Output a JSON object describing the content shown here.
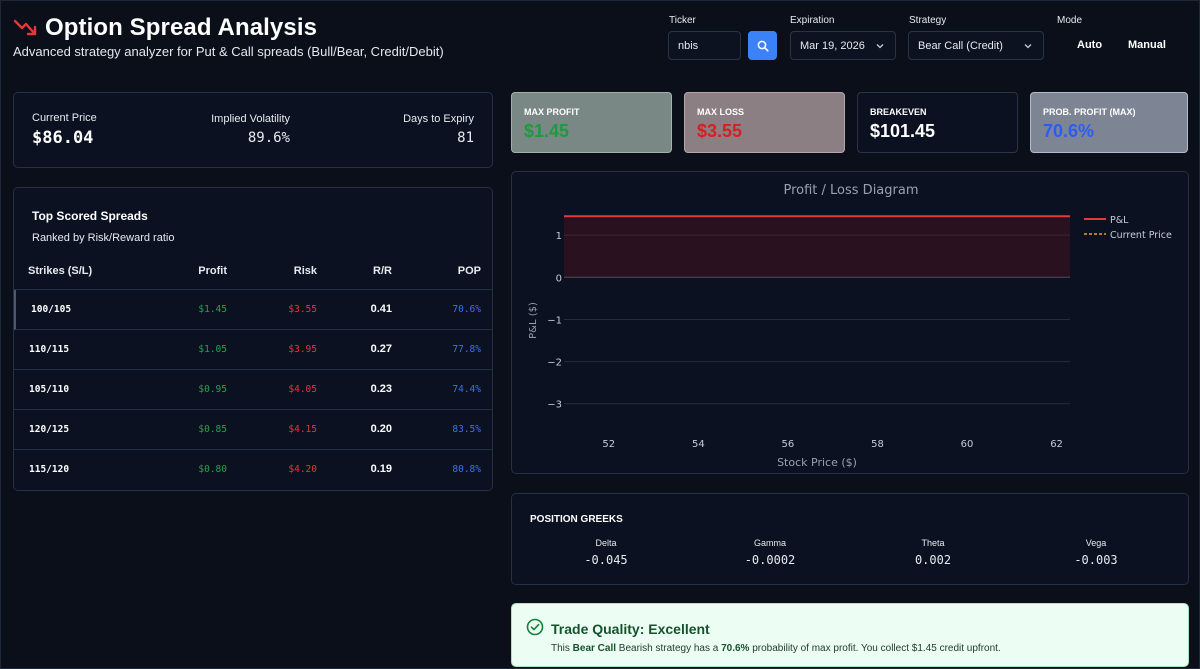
{
  "header": {
    "title": "Option Spread Analysis",
    "subtitle": "Advanced strategy analyzer for Put & Call spreads (Bull/Bear, Credit/Debit)",
    "icon": "trending-down-icon"
  },
  "controls": {
    "ticker_label": "Ticker",
    "ticker_value": "nbis",
    "expiration_label": "Expiration",
    "expiration_value": "Mar 19, 2026",
    "strategy_label": "Strategy",
    "strategy_value": "Bear Call (Credit)",
    "mode_label": "Mode",
    "mode_auto": "Auto",
    "mode_manual": "Manual"
  },
  "stats": {
    "price_label": "Current Price",
    "price_value": "$86.04",
    "iv_label": "Implied Volatility",
    "iv_value": "89.6%",
    "dte_label": "Days to Expiry",
    "dte_value": "81"
  },
  "spreads": {
    "title": "Top Scored Spreads",
    "subtitle": "Ranked by Risk/Reward ratio",
    "headers": [
      "Strikes (S/L)",
      "Profit",
      "Risk",
      "R/R",
      "POP"
    ],
    "rows": [
      {
        "strikes": "100/105",
        "profit": "$1.45",
        "risk": "$3.55",
        "rr": "0.41",
        "pop": "70.6%"
      },
      {
        "strikes": "110/115",
        "profit": "$1.05",
        "risk": "$3.95",
        "rr": "0.27",
        "pop": "77.8%"
      },
      {
        "strikes": "105/110",
        "profit": "$0.95",
        "risk": "$4.05",
        "rr": "0.23",
        "pop": "74.4%"
      },
      {
        "strikes": "120/125",
        "profit": "$0.85",
        "risk": "$4.15",
        "rr": "0.20",
        "pop": "83.5%"
      },
      {
        "strikes": "115/120",
        "profit": "$0.80",
        "risk": "$4.20",
        "rr": "0.19",
        "pop": "80.8%"
      }
    ]
  },
  "metrics": {
    "max_profit_label": "MAX PROFIT",
    "max_profit_value": "$1.45",
    "max_loss_label": "MAX LOSS",
    "max_loss_value": "$3.55",
    "breakeven_label": "BREAKEVEN",
    "breakeven_value": "$101.45",
    "pop_label": "PROB. PROFIT (MAX)",
    "pop_value": "70.6%"
  },
  "chart_data": {
    "type": "line",
    "title": "Profit / Loss Diagram",
    "xlabel": "Stock Price ($)",
    "ylabel": "P&L ($)",
    "xlim": [
      51,
      62.3
    ],
    "ylim": [
      -3.6,
      1.55
    ],
    "xticks": [
      52,
      54,
      56,
      58,
      60,
      62
    ],
    "yticks": [
      1,
      0,
      -1,
      -2,
      -3
    ],
    "ytick_labels": [
      "1",
      "0",
      "−1",
      "−2",
      "−3"
    ],
    "grid": true,
    "legend_position": "top-right",
    "series": [
      {
        "name": "P&L",
        "color": "#e53838",
        "x": [
          51,
          62.3
        ],
        "y": [
          1.45,
          1.45
        ]
      },
      {
        "name": "Current Price",
        "color": "#f0a020",
        "dashed": true
      }
    ]
  },
  "greeks": {
    "title": "POSITION GREEKS",
    "items": [
      {
        "label": "Delta",
        "value": "-0.045"
      },
      {
        "label": "Gamma",
        "value": "-0.0002"
      },
      {
        "label": "Theta",
        "value": "0.002"
      },
      {
        "label": "Vega",
        "value": "-0.003"
      }
    ]
  },
  "quality": {
    "title": "Trade Quality: Excellent",
    "text_1": "This ",
    "strategy": "Bear Call",
    "text_2": " Bearish strategy has a ",
    "pop": "70.6%",
    "text_3": " probability of max profit. You collect $1.45 credit upfront."
  },
  "colors": {
    "profit_green": "#22a64a",
    "loss_red": "#e53838",
    "pop_blue": "#3b6ff5",
    "accent_blue": "#3b82f6"
  }
}
